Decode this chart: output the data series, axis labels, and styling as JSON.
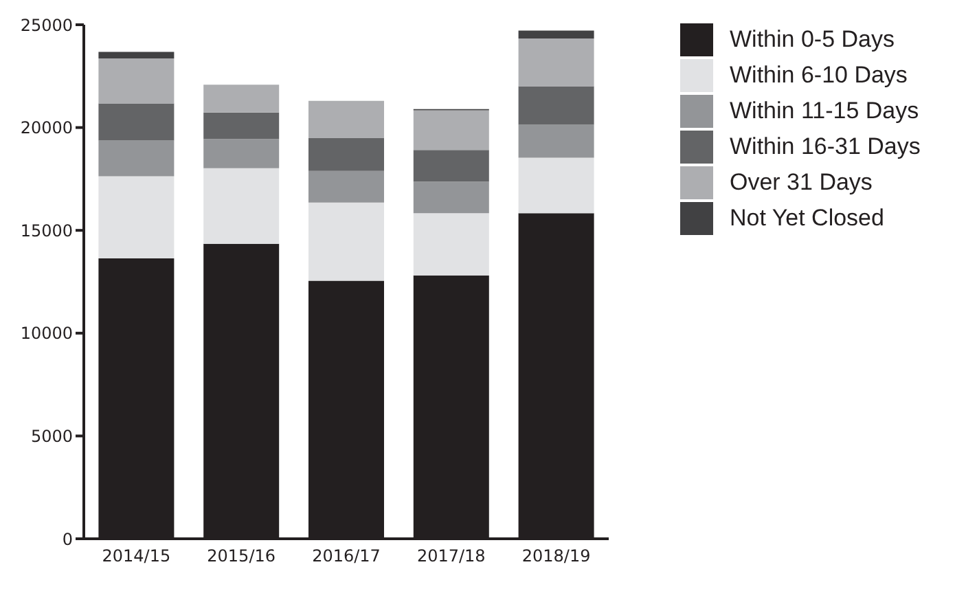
{
  "chart_data": {
    "type": "bar",
    "stacked": true,
    "categories": [
      "2014/15",
      "2015/16",
      "2016/17",
      "2017/18",
      "2018/19"
    ],
    "series": [
      {
        "name": "Within 0-5 Days",
        "color": "#231f20",
        "values": [
          13640,
          14350,
          12550,
          12810,
          15830
        ]
      },
      {
        "name": "Within 6-10 Days",
        "color": "#e1e2e4",
        "values": [
          3990,
          3670,
          3800,
          3020,
          2700
        ]
      },
      {
        "name": "Within 11-15 Days",
        "color": "#939598",
        "values": [
          1740,
          1420,
          1540,
          1540,
          1610
        ]
      },
      {
        "name": "Within 16-31 Days",
        "color": "#636466",
        "values": [
          1800,
          1290,
          1610,
          1540,
          1870
        ]
      },
      {
        "name": "Over 31 Days",
        "color": "#adaeb1",
        "values": [
          2190,
          1350,
          1800,
          1930,
          2320
        ]
      },
      {
        "name": "Not Yet Closed",
        "color": "#414143",
        "values": [
          320,
          0,
          0,
          60,
          390
        ]
      }
    ],
    "ylim": [
      0,
      25000
    ],
    "yticks": [
      0,
      5000,
      10000,
      15000,
      20000,
      25000
    ],
    "legend": "top right"
  }
}
